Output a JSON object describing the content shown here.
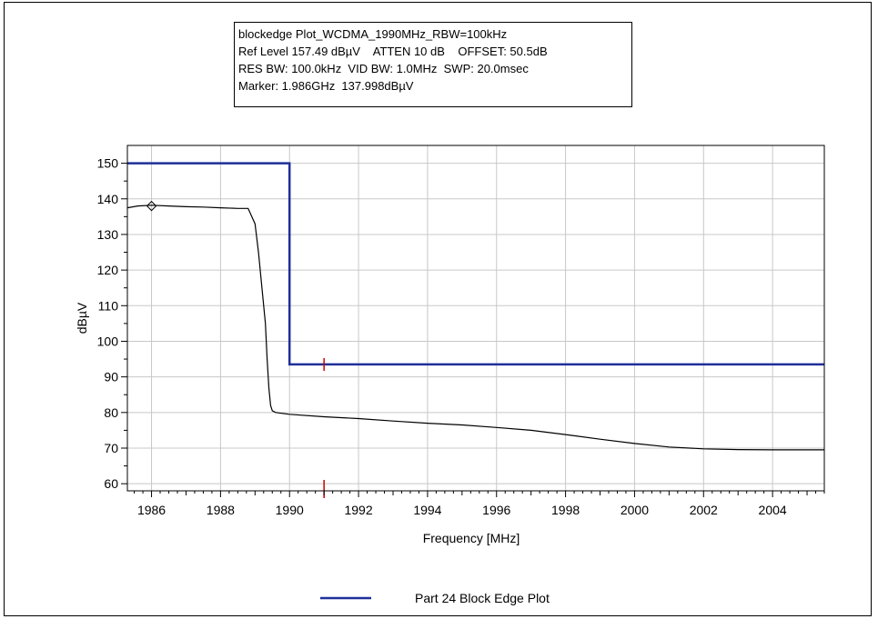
{
  "info": {
    "line1": "blockedge Plot_WCDMA_1990MHz_RBW=100kHz",
    "line2": "Ref Level 157.49 dBµV    ATTEN 10 dB    OFFSET: 50.5dB",
    "line3": "RES BW: 100.0kHz  VID BW: 1.0MHz  SWP: 20.0msec",
    "line4": "Marker: 1.986GHz  137.998dBµV"
  },
  "chart_data": {
    "type": "line",
    "xlabel": "Frequency [MHz]",
    "ylabel": "dBµV",
    "xlim": [
      1985.3,
      2005.5
    ],
    "ylim": [
      58,
      155
    ],
    "xticks": [
      1986,
      1988,
      1990,
      1992,
      1994,
      1996,
      1998,
      2000,
      2002,
      2004
    ],
    "yticks": [
      60,
      70,
      80,
      90,
      100,
      110,
      120,
      130,
      140,
      150
    ],
    "grid": true,
    "legend_position": "bottom",
    "series": [
      {
        "name": "Part 24 Block Edge Plot",
        "color": "#1f2f9a",
        "x": [
          1985.3,
          1990.0,
          1990.0,
          2005.5
        ],
        "y": [
          150,
          150,
          93.5,
          93.5
        ]
      },
      {
        "name": "",
        "color": "#000000",
        "x": [
          1985.3,
          1985.6,
          1986.0,
          1986.5,
          1987.0,
          1987.5,
          1988.0,
          1988.5,
          1988.8,
          1989.0,
          1989.1,
          1989.2,
          1989.3,
          1989.35,
          1989.4,
          1989.45,
          1989.5,
          1989.6,
          1990.0,
          1991.0,
          1992.0,
          1993.0,
          1994.0,
          1995.0,
          1996.0,
          1997.0,
          1998.0,
          1999.0,
          2000.0,
          2001.0,
          2002.0,
          2003.0,
          2004.0,
          2005.5
        ],
        "y": [
          137.5,
          138.0,
          138.2,
          138.0,
          137.8,
          137.7,
          137.5,
          137.3,
          137.3,
          133.0,
          125.0,
          115.0,
          105.0,
          95.0,
          87.0,
          82.0,
          80.5,
          80.0,
          79.5,
          78.8,
          78.3,
          77.6,
          77.0,
          76.5,
          75.8,
          75.0,
          73.8,
          72.5,
          71.3,
          70.3,
          69.8,
          69.6,
          69.5,
          69.5
        ]
      }
    ],
    "marker": {
      "x": 1986.0,
      "y": 137.998
    },
    "red_marker_x": 1991.0
  }
}
